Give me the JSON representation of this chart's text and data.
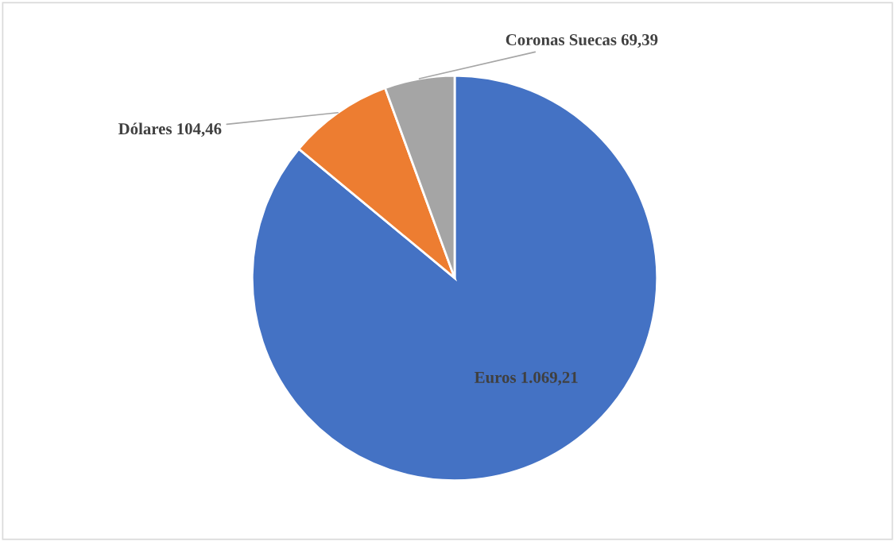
{
  "chart_data": {
    "type": "pie",
    "categories": [
      "Euros",
      "Dólares",
      "Coronas Suecas"
    ],
    "values": [
      1069.21,
      104.46,
      69.39
    ],
    "value_labels": [
      "1.069,21",
      "104,46",
      "69,39"
    ],
    "colors": [
      "#4472c4",
      "#ed7d31",
      "#a5a5a5"
    ],
    "legend": false
  }
}
